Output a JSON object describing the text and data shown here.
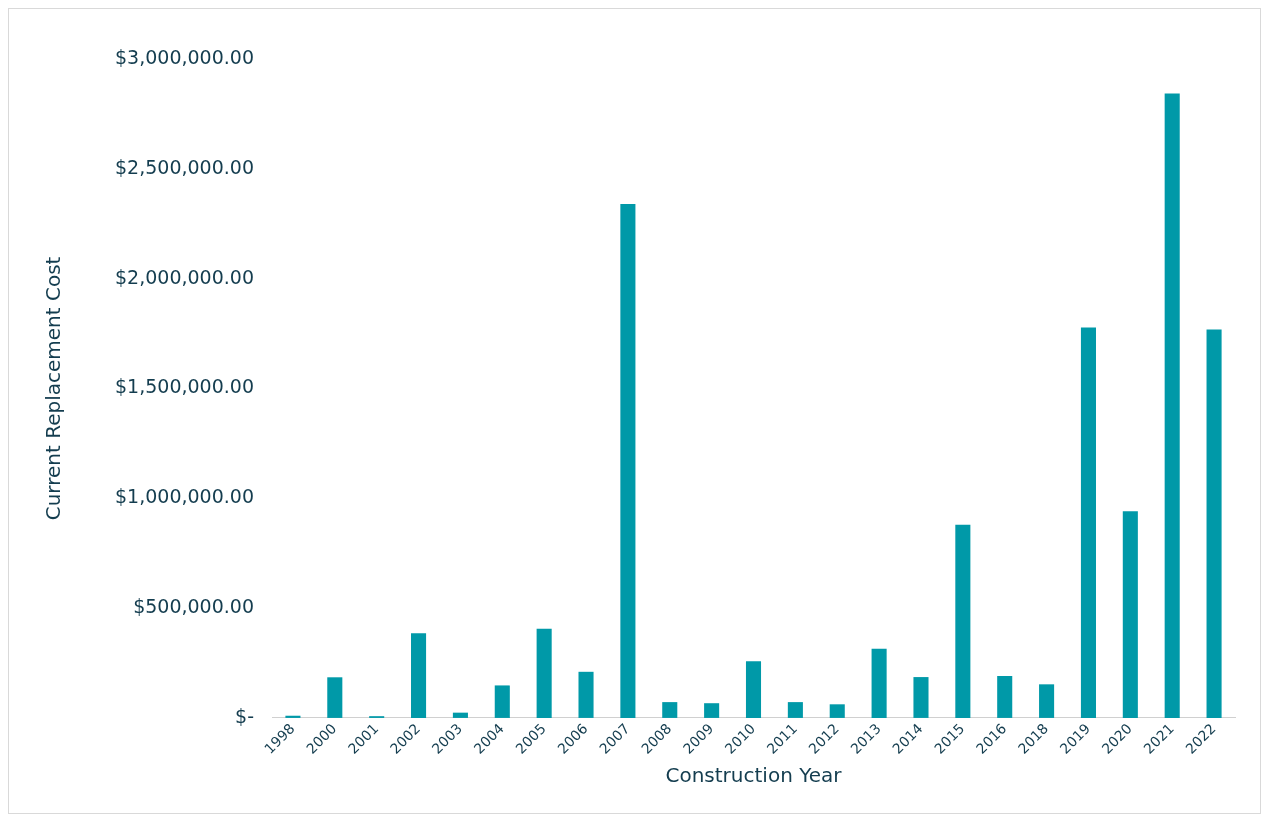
{
  "chart_data": {
    "type": "bar",
    "xlabel": "Construction Year",
    "ylabel": "Current Replacement Cost",
    "categories": [
      "1998",
      "2000",
      "2001",
      "2002",
      "2003",
      "2004",
      "2005",
      "2006",
      "2007",
      "2008",
      "2009",
      "2010",
      "2011",
      "2012",
      "2013",
      "2014",
      "2015",
      "2016",
      "2018",
      "2019",
      "2020",
      "2021",
      "2022"
    ],
    "values": [
      10000,
      185000,
      8000,
      385000,
      24000,
      148000,
      406000,
      210000,
      2340000,
      72000,
      67000,
      258000,
      72000,
      62000,
      315000,
      186000,
      880000,
      191000,
      153000,
      1777000,
      941000,
      2843000,
      1768000
    ],
    "color": "#0099a8",
    "ylim": [
      0,
      3000000
    ],
    "yticks": [
      {
        "value": 0,
        "label": "$-"
      },
      {
        "value": 500000,
        "label": "$500,000.00"
      },
      {
        "value": 1000000,
        "label": "$1,000,000.00"
      },
      {
        "value": 1500000,
        "label": "$1,500,000.00"
      },
      {
        "value": 2000000,
        "label": "$2,000,000.00"
      },
      {
        "value": 2500000,
        "label": "$2,500,000.00"
      },
      {
        "value": 3000000,
        "label": "$3,000,000.00"
      }
    ],
    "grid": false,
    "legend": false
  }
}
